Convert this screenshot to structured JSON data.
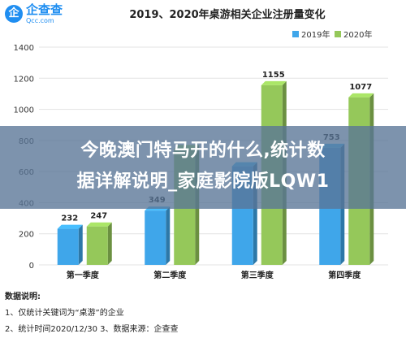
{
  "logo": {
    "mark": "企",
    "name": "企查查",
    "sub": "Qcc.com"
  },
  "banner": {
    "text": "今晚澳门特马开的什么,统计数\n据详解说明_家庭影院版LQW1"
  },
  "notes": {
    "title": "数据说明:",
    "line1": "1、仅统计关键词为“桌游”的企业",
    "line2": "2、统计时间2020/12/30    3、数据来源：企查查"
  },
  "colors": {
    "series2019": "#3fa6ea",
    "series2020": "#95c85a",
    "grid": "#e3e3e3"
  },
  "chart_data": {
    "type": "bar",
    "title": "2019、2020年桌游相关企业注册量变化",
    "categories": [
      "第一季度",
      "第二季度",
      "第三季度",
      "第四季度"
    ],
    "series": [
      {
        "name": "2019年",
        "values": [
          232,
          349,
          634,
          753
        ]
      },
      {
        "name": "2020年",
        "values": [
          247,
          745,
          1155,
          1077
        ]
      }
    ],
    "data_labels": [
      [
        "232",
        "247"
      ],
      [
        "349",
        ""
      ],
      [
        "",
        "1155"
      ],
      [
        "753",
        "1077"
      ]
    ],
    "yticks": [
      0,
      200,
      400,
      600,
      800,
      1000,
      1200,
      1400
    ],
    "ylim": [
      0,
      1400
    ],
    "xlabel": "",
    "ylabel": "",
    "legend": "top-right",
    "grid": true
  }
}
